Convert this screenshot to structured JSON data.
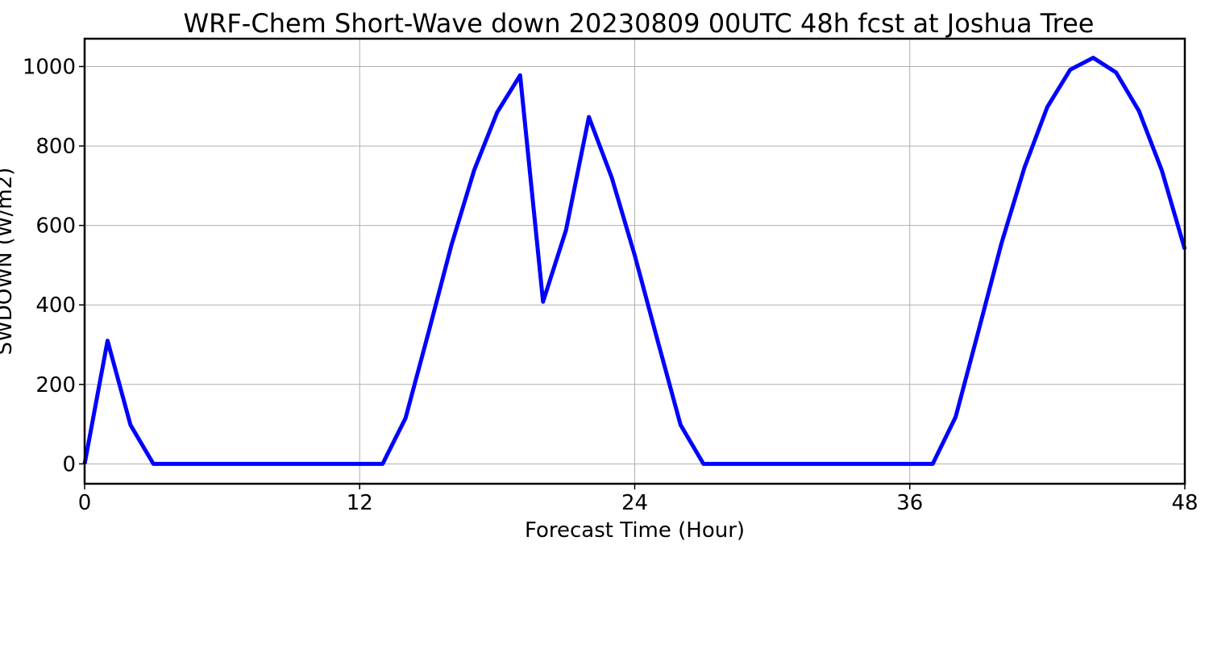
{
  "chart_data": {
    "type": "line",
    "title": "WRF-Chem Short-Wave down  20230809 00UTC 48h fcst at Joshua Tree",
    "xlabel": "Forecast Time (Hour)",
    "ylabel": "SWDOWN  (W/m2)",
    "xlim": [
      0,
      48
    ],
    "ylim": [
      -50,
      1070
    ],
    "x_ticks": [
      0,
      12,
      24,
      36,
      48
    ],
    "y_ticks": [
      0,
      200,
      400,
      600,
      800,
      1000
    ],
    "grid": true,
    "line_color": "#0000ff",
    "series": [
      {
        "x": [
          0,
          1,
          2,
          3,
          4,
          5,
          6,
          7,
          8,
          9,
          10,
          11,
          12,
          13,
          14,
          15,
          16,
          17,
          18,
          19,
          20,
          21,
          22,
          23,
          24,
          25,
          26,
          27,
          28,
          29,
          30,
          31,
          32,
          33,
          34,
          35,
          36,
          37,
          38,
          39,
          40,
          41,
          42,
          43,
          44,
          45,
          46,
          47,
          48
        ],
        "values": [
          0,
          310,
          98,
          0,
          0,
          0,
          0,
          0,
          0,
          0,
          0,
          0,
          0,
          0,
          115,
          330,
          550,
          740,
          885,
          978,
          408,
          588,
          873,
          720,
          525,
          310,
          98,
          0,
          0,
          0,
          0,
          0,
          0,
          0,
          0,
          0,
          0,
          0,
          118,
          335,
          555,
          745,
          898,
          992,
          1022,
          985,
          888,
          738,
          540
        ]
      }
    ]
  }
}
